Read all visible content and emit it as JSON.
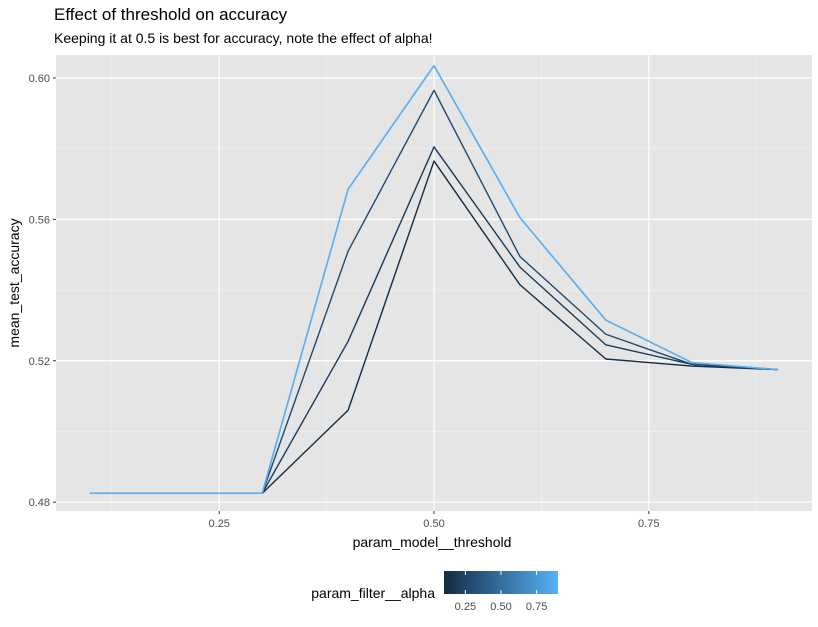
{
  "chart_data": {
    "type": "line",
    "title": "Effect of threshold on accuracy",
    "subtitle": "Keeping it at 0.5 is best for accuracy, note the effect of alpha!",
    "xlabel": "param_model__threshold",
    "ylabel": "mean_test_accuracy",
    "x": [
      0.1,
      0.2,
      0.3,
      0.4,
      0.5,
      0.6,
      0.7,
      0.8,
      0.9
    ],
    "xlim": [
      0.06,
      0.94
    ],
    "ylim": [
      0.4775,
      0.6065
    ],
    "x_ticks": [
      0.25,
      0.5,
      0.75
    ],
    "x_tick_labels": [
      "0.25",
      "0.50",
      "0.75"
    ],
    "y_ticks": [
      0.48,
      0.52,
      0.56,
      0.6
    ],
    "y_tick_labels": [
      "0.48",
      "0.52",
      "0.56",
      "0.60"
    ],
    "grid": true,
    "series": [
      {
        "alpha": 0.1,
        "color": "#132B43",
        "values": [
          0.4825,
          0.4825,
          0.4825,
          0.506,
          0.5765,
          0.5415,
          0.5205,
          0.5185,
          0.5175
        ]
      },
      {
        "alpha": 0.3,
        "color": "#1A3A5A",
        "values": [
          0.4825,
          0.4825,
          0.4825,
          0.5255,
          0.5805,
          0.5465,
          0.5245,
          0.519,
          0.5175
        ]
      },
      {
        "alpha": 0.5,
        "color": "#1F4A70",
        "values": [
          0.4825,
          0.4825,
          0.4825,
          0.551,
          0.5965,
          0.5495,
          0.5275,
          0.519,
          0.5175
        ]
      },
      {
        "alpha": 0.7,
        "color": "#3078C4",
        "values": [
          0.4825,
          0.4825,
          0.4825,
          0.5685,
          0.6035,
          0.5605,
          0.5315,
          0.5195,
          0.5175
        ]
      },
      {
        "alpha": 0.9,
        "color": "#56B1F7",
        "values": [
          0.4825,
          0.4825,
          0.4825,
          0.5685,
          0.6035,
          0.5605,
          0.5315,
          0.5195,
          0.5175
        ]
      }
    ],
    "legend": {
      "title": "param_filter__alpha",
      "position": "bottom",
      "type": "colorbar",
      "range": [
        0.1,
        0.9
      ],
      "low_color": "#132B43",
      "high_color": "#56B1F7",
      "ticks": [
        0.25,
        0.5,
        0.75
      ],
      "tick_labels": [
        "0.25",
        "0.50",
        "0.75"
      ]
    }
  }
}
